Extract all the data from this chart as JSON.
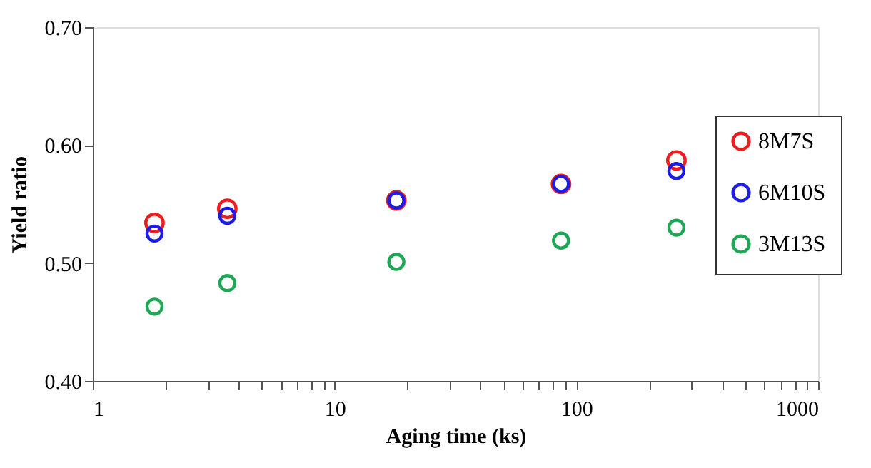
{
  "chart_data": {
    "type": "scatter",
    "xlabel": "Aging time (ks)",
    "ylabel": "Yield ratio",
    "x": [
      1.8,
      3.6,
      18,
      86.4,
      259.2
    ],
    "series": [
      {
        "name": "8M7S",
        "color": "#ee1c1c",
        "values": [
          0.534,
          0.546,
          0.553,
          0.567,
          0.587
        ]
      },
      {
        "name": "6M10S",
        "color": "#1c1ce6",
        "values": [
          0.525,
          0.54,
          0.553,
          0.567,
          0.578
        ]
      },
      {
        "name": "3M13S",
        "color": "#1ca855",
        "values": [
          0.463,
          0.483,
          0.501,
          0.519,
          0.53
        ]
      }
    ],
    "log": "x",
    "xlim": [
      1,
      1000
    ],
    "xticks": [
      1,
      {
        "value": 2,
        "label": null
      },
      {
        "value": 3,
        "label": null
      },
      {
        "value": 4,
        "label": null
      },
      {
        "value": 5,
        "label": null
      },
      {
        "value": 6,
        "label": null
      },
      {
        "value": 7,
        "label": null
      },
      {
        "value": 8,
        "label": null
      },
      {
        "value": 9,
        "label": null
      },
      10,
      {
        "value": 20,
        "label": null
      },
      {
        "value": 30,
        "label": null
      },
      {
        "value": 40,
        "label": null
      },
      {
        "value": 50,
        "label": null
      },
      {
        "value": 60,
        "label": null
      },
      {
        "value": 70,
        "label": null
      },
      {
        "value": 80,
        "label": null
      },
      {
        "value": 90,
        "label": null
      },
      100,
      {
        "value": 200,
        "label": null
      },
      {
        "value": 300,
        "label": null
      },
      {
        "value": 400,
        "label": null
      },
      {
        "value": 500,
        "label": null
      },
      {
        "value": 600,
        "label": null
      },
      {
        "value": 700,
        "label": null
      },
      {
        "value": 800,
        "label": null
      },
      {
        "value": 900,
        "label": null
      },
      1000
    ],
    "ylim": [
      0.4,
      0.7
    ],
    "yticks": [
      {
        "value": 0.4,
        "label": "0.40"
      },
      {
        "value": 0.5,
        "label": "0.50"
      },
      {
        "value": 0.6,
        "label": "0.60"
      },
      {
        "value": 0.7,
        "label": "0.70"
      }
    ],
    "marker": "circle",
    "legend": "right",
    "grid": false
  }
}
